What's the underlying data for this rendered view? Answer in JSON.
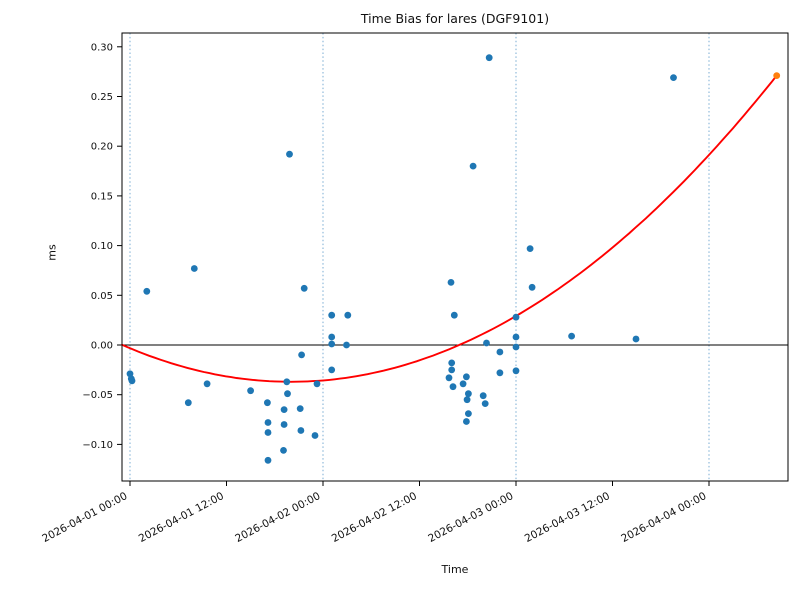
{
  "chart_data": {
    "type": "scatter",
    "title": "Time Bias for lares (DGF9101)",
    "xlabel": "Time",
    "ylabel": "ms",
    "grid": "vertical-dotted-lines-at-day-boundaries",
    "legend": "none",
    "colors": {
      "scatter": "#1f77b4",
      "highlight": "#ff7f0e",
      "fit": "#ff0000",
      "gridline": "#6ba3cf",
      "axis": "#000000"
    },
    "x_axis": {
      "unit": "datetime",
      "range_hours_from_2026_04_01": [
        -1.0,
        81.8
      ],
      "gridline_hours": [
        0,
        24,
        48,
        72
      ],
      "ticks": [
        {
          "hours": 0,
          "label": "2026-04-01 00:00"
        },
        {
          "hours": 12,
          "label": "2026-04-01 12:00"
        },
        {
          "hours": 24,
          "label": "2026-04-02 00:00"
        },
        {
          "hours": 36,
          "label": "2026-04-02 12:00"
        },
        {
          "hours": 48,
          "label": "2026-04-03 00:00"
        },
        {
          "hours": 60,
          "label": "2026-04-03 12:00"
        },
        {
          "hours": 72,
          "label": "2026-04-04 00:00"
        }
      ]
    },
    "y_axis": {
      "unit": "ms",
      "range": [
        -0.137,
        0.314
      ],
      "zero_line": true,
      "ticks": [
        {
          "value": -0.1,
          "label": "−0.10"
        },
        {
          "value": -0.05,
          "label": "−0.05"
        },
        {
          "value": 0.0,
          "label": "0.00"
        },
        {
          "value": 0.05,
          "label": "0.05"
        },
        {
          "value": 0.1,
          "label": "0.10"
        },
        {
          "value": 0.15,
          "label": "0.15"
        },
        {
          "value": 0.2,
          "label": "0.20"
        },
        {
          "value": 0.25,
          "label": "0.25"
        },
        {
          "value": 0.3,
          "label": "0.30"
        }
      ]
    },
    "fit_curve": {
      "shape": "quadratic",
      "color": "#ff0000",
      "coeff_a": 8.44e-05,
      "vertex_hours": 20,
      "vertex_value": -0.037,
      "t_start_hours": -1.0,
      "t_end_hours": 80.42
    },
    "series": [
      {
        "name": "observations",
        "color": "#1f77b4",
        "points": [
          {
            "time": "2026-04-01 00:00",
            "value": -0.029
          },
          {
            "time": "2026-04-01 00:10",
            "value": -0.034
          },
          {
            "time": "2026-04-01 00:15",
            "value": -0.036
          },
          {
            "time": "2026-04-01 02:05",
            "value": 0.054
          },
          {
            "time": "2026-04-01 07:15",
            "value": -0.058
          },
          {
            "time": "2026-04-01 08:00",
            "value": 0.077
          },
          {
            "time": "2026-04-01 09:35",
            "value": -0.039
          },
          {
            "time": "2026-04-01 15:00",
            "value": -0.046
          },
          {
            "time": "2026-04-01 17:05",
            "value": -0.058
          },
          {
            "time": "2026-04-01 17:10",
            "value": -0.078
          },
          {
            "time": "2026-04-01 17:10",
            "value": -0.088
          },
          {
            "time": "2026-04-01 17:10",
            "value": -0.116
          },
          {
            "time": "2026-04-01 19:05",
            "value": -0.106
          },
          {
            "time": "2026-04-01 19:10",
            "value": -0.065
          },
          {
            "time": "2026-04-01 19:10",
            "value": -0.08
          },
          {
            "time": "2026-04-01 19:30",
            "value": -0.037
          },
          {
            "time": "2026-04-01 19:35",
            "value": -0.049
          },
          {
            "time": "2026-04-01 19:50",
            "value": 0.192
          },
          {
            "time": "2026-04-01 21:10",
            "value": -0.064
          },
          {
            "time": "2026-04-01 21:15",
            "value": -0.086
          },
          {
            "time": "2026-04-01 21:20",
            "value": -0.01
          },
          {
            "time": "2026-04-01 21:40",
            "value": 0.057
          },
          {
            "time": "2026-04-01 23:00",
            "value": -0.091
          },
          {
            "time": "2026-04-01 23:15",
            "value": -0.039
          },
          {
            "time": "2026-04-02 01:05",
            "value": 0.03
          },
          {
            "time": "2026-04-02 01:05",
            "value": 0.008
          },
          {
            "time": "2026-04-02 01:05",
            "value": 0.001
          },
          {
            "time": "2026-04-02 01:05",
            "value": -0.025
          },
          {
            "time": "2026-04-02 02:55",
            "value": 0.0
          },
          {
            "time": "2026-04-02 03:05",
            "value": 0.03
          },
          {
            "time": "2026-04-02 15:40",
            "value": -0.033
          },
          {
            "time": "2026-04-02 15:55",
            "value": 0.063
          },
          {
            "time": "2026-04-02 16:00",
            "value": -0.018
          },
          {
            "time": "2026-04-02 16:00",
            "value": -0.025
          },
          {
            "time": "2026-04-02 16:10",
            "value": -0.042
          },
          {
            "time": "2026-04-02 16:20",
            "value": 0.03
          },
          {
            "time": "2026-04-02 17:25",
            "value": -0.039
          },
          {
            "time": "2026-04-02 17:50",
            "value": -0.032
          },
          {
            "time": "2026-04-02 17:50",
            "value": -0.077
          },
          {
            "time": "2026-04-02 17:55",
            "value": -0.055
          },
          {
            "time": "2026-04-02 18:05",
            "value": -0.049
          },
          {
            "time": "2026-04-02 18:05",
            "value": -0.069
          },
          {
            "time": "2026-04-02 18:40",
            "value": 0.18
          },
          {
            "time": "2026-04-02 19:55",
            "value": -0.051
          },
          {
            "time": "2026-04-02 20:10",
            "value": -0.059
          },
          {
            "time": "2026-04-02 20:20",
            "value": 0.002
          },
          {
            "time": "2026-04-02 20:40",
            "value": 0.289
          },
          {
            "time": "2026-04-02 22:00",
            "value": -0.007
          },
          {
            "time": "2026-04-02 22:00",
            "value": -0.028
          },
          {
            "time": "2026-04-03 00:00",
            "value": 0.028
          },
          {
            "time": "2026-04-03 00:00",
            "value": 0.008
          },
          {
            "time": "2026-04-03 00:00",
            "value": -0.002
          },
          {
            "time": "2026-04-03 00:00",
            "value": -0.026
          },
          {
            "time": "2026-04-03 01:45",
            "value": 0.097
          },
          {
            "time": "2026-04-03 02:00",
            "value": 0.058
          },
          {
            "time": "2026-04-03 06:55",
            "value": 0.009
          },
          {
            "time": "2026-04-03 14:55",
            "value": 0.006
          },
          {
            "time": "2026-04-03 19:35",
            "value": 0.269
          }
        ]
      },
      {
        "name": "highlight",
        "color": "#ff7f0e",
        "points": [
          {
            "time": "2026-04-04 08:25",
            "value": 0.271
          }
        ]
      }
    ]
  }
}
